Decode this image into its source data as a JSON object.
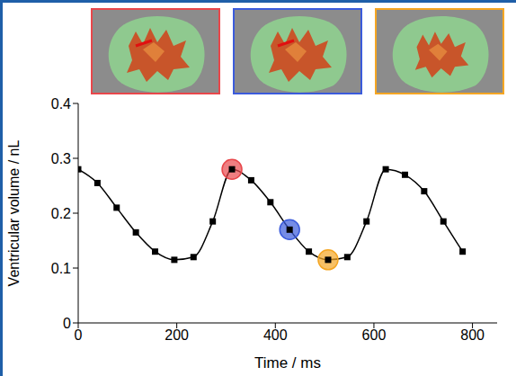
{
  "chart_data": {
    "type": "line",
    "x_label": "Time / ms",
    "y_label": "Ventricular volume / nL",
    "x": [
      0,
      39,
      78,
      117,
      156,
      195,
      234,
      273,
      312,
      351,
      390,
      429,
      468,
      507,
      546,
      585,
      624,
      663,
      702,
      741,
      780
    ],
    "values": [
      0.28,
      0.255,
      0.21,
      0.165,
      0.13,
      0.115,
      0.12,
      0.185,
      0.28,
      0.26,
      0.22,
      0.17,
      0.13,
      0.115,
      0.12,
      0.185,
      0.28,
      0.27,
      0.24,
      0.185,
      0.13
    ],
    "color": "#000000",
    "marker": "square",
    "line_style": "solid",
    "xlim": [
      0,
      850
    ],
    "xticks": [
      0,
      200,
      400,
      600,
      800
    ],
    "ylim": [
      0,
      0.4
    ],
    "yticks": [
      0,
      0.1,
      0.2,
      0.3,
      0.4
    ],
    "highlights": [
      {
        "x": 312,
        "y": 0.28,
        "color": "#e8474b"
      },
      {
        "x": 429,
        "y": 0.17,
        "color": "#3b5bdb"
      },
      {
        "x": 507,
        "y": 0.115,
        "color": "#f5a623"
      }
    ]
  }
}
